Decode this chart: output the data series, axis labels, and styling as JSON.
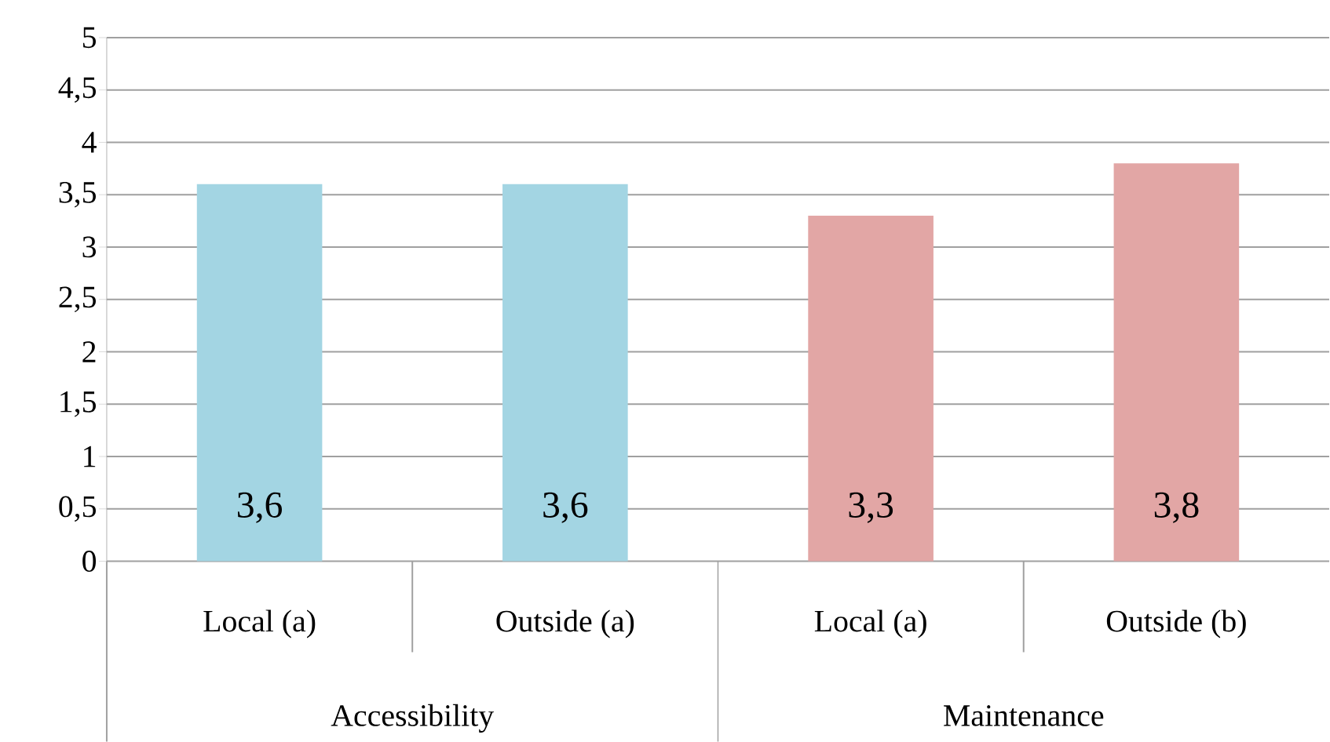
{
  "chart_data": {
    "type": "bar",
    "categories": [
      "Local (a)",
      "Outside (a)",
      "Local (a)",
      "Outside (b)"
    ],
    "values": [
      3.6,
      3.6,
      3.3,
      3.8
    ],
    "colors": [
      "#a3d5e3",
      "#a3d5e3",
      "#e2a6a5",
      "#e2a6a5"
    ],
    "value_labels": [
      "3,6",
      "3,6",
      "3,3",
      "3,8"
    ],
    "ylim": [
      0,
      5
    ],
    "yticks": [
      0,
      {
        "value": 0.5,
        "label": "0,5"
      },
      1,
      {
        "value": 1.5,
        "label": "1,5"
      },
      2,
      {
        "value": 2.5,
        "label": "2,5"
      },
      3,
      {
        "value": 3.5,
        "label": "3,5"
      },
      4,
      {
        "value": 4.5,
        "label": "4,5"
      },
      5
    ],
    "grid": "y",
    "annotations": [
      "Accessibility",
      "Maintenance"
    ]
  }
}
